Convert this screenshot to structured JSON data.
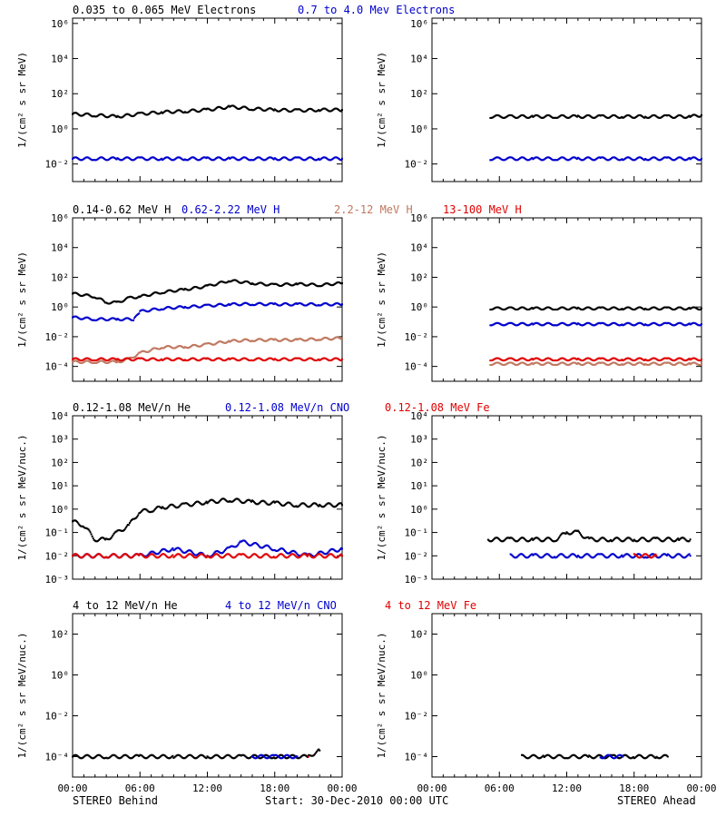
{
  "bottom": {
    "left_caption": "STEREO Behind",
    "center_caption": "Start: 30-Dec-2010 00:00 UTC",
    "right_caption": "STEREO Ahead",
    "xticks": [
      "00:00",
      "06:00",
      "12:00",
      "18:00",
      "00:00"
    ]
  },
  "colors": {
    "black": "#000000",
    "blue": "#0000cc",
    "tan": "#c07860",
    "red": "#e00000"
  },
  "chart_data": [
    {
      "type": "scatter",
      "title": "",
      "ylabel": "1/(cm² s sr MeV)",
      "ylog": true,
      "ylim": [
        0.001,
        2000000
      ],
      "yticks": [
        {
          "v": 0.01,
          "t": "10⁻²"
        },
        {
          "v": 1,
          "t": "10⁰"
        },
        {
          "v": 100,
          "t": "10²"
        },
        {
          "v": 10000,
          "t": "10⁴"
        },
        {
          "v": 1000000,
          "t": "10⁶"
        }
      ],
      "xlim": [
        0,
        24
      ],
      "legend": [
        "0.035 to 0.065 MeV Electrons",
        "0.7 to 4.0 Mev Electrons"
      ],
      "series": [
        {
          "name": "0.035 to 0.065 MeV Electrons",
          "color": "#000000",
          "x": [
            0,
            2,
            4,
            6,
            8,
            10,
            12,
            14,
            16,
            18,
            20,
            22,
            24
          ],
          "values": [
            7,
            6,
            5,
            7,
            9,
            10,
            12,
            18,
            14,
            12,
            11,
            12,
            12
          ]
        },
        {
          "name": "0.7 to 4.0 Mev Electrons",
          "color": "#0000cc",
          "x": [
            0,
            2,
            4,
            6,
            8,
            10,
            12,
            14,
            16,
            18,
            20,
            22,
            24
          ],
          "values": [
            0.02,
            0.02,
            0.02,
            0.02,
            0.02,
            0.02,
            0.02,
            0.02,
            0.02,
            0.02,
            0.02,
            0.02,
            0.02
          ]
        }
      ]
    },
    {
      "type": "scatter",
      "title": "",
      "ylabel": "1/(cm² s sr MeV)",
      "ylog": true,
      "ylim": [
        0.001,
        2000000
      ],
      "yticks": [
        {
          "v": 0.01,
          "t": "10⁻²"
        },
        {
          "v": 1,
          "t": "10⁰"
        },
        {
          "v": 100,
          "t": "10²"
        },
        {
          "v": 10000,
          "t": "10⁴"
        },
        {
          "v": 1000000,
          "t": "10⁶"
        }
      ],
      "xlim": [
        0,
        24
      ],
      "legend": [],
      "series": [
        {
          "name": "0.035 to 0.065 MeV Electrons",
          "color": "#000000",
          "x": [
            5.2,
            7,
            9,
            11,
            13,
            15,
            17,
            19,
            21,
            23,
            24
          ],
          "values": [
            5,
            5,
            5,
            5,
            5,
            5,
            5,
            5,
            5,
            5,
            6
          ]
        },
        {
          "name": "0.7 to 4.0 Mev Electrons",
          "color": "#0000cc",
          "x": [
            5.2,
            7,
            9,
            11,
            13,
            15,
            17,
            19,
            21,
            23,
            24
          ],
          "values": [
            0.02,
            0.02,
            0.02,
            0.02,
            0.02,
            0.02,
            0.02,
            0.02,
            0.02,
            0.02,
            0.02
          ]
        }
      ]
    },
    {
      "type": "scatter",
      "title": "",
      "ylabel": "1/(cm² s sr MeV)",
      "ylog": true,
      "ylim": [
        1e-05,
        1000000
      ],
      "yticks": [
        {
          "v": 0.0001,
          "t": "10⁻⁴"
        },
        {
          "v": 0.01,
          "t": "10⁻²"
        },
        {
          "v": 1,
          "t": "10⁰"
        },
        {
          "v": 100,
          "t": "10²"
        },
        {
          "v": 10000,
          "t": "10⁴"
        },
        {
          "v": 1000000,
          "t": "10⁶"
        }
      ],
      "xlim": [
        0,
        24
      ],
      "legend": [
        "0.14-0.62 MeV H",
        "0.62-2.22 MeV H",
        "2.2-12 MeV H",
        "13-100 MeV H"
      ],
      "series": [
        {
          "name": "0.14-0.62 MeV H",
          "color": "#000000",
          "x": [
            0,
            2,
            3,
            4,
            5,
            6,
            8,
            10,
            12,
            14,
            16,
            18,
            20,
            22,
            24
          ],
          "values": [
            8,
            5,
            2,
            2,
            4,
            5,
            10,
            15,
            25,
            60,
            40,
            30,
            35,
            30,
            40
          ]
        },
        {
          "name": "0.62-2.22 MeV H",
          "color": "#0000cc",
          "x": [
            0,
            2,
            4,
            5.5,
            6,
            8,
            10,
            12,
            14,
            16,
            18,
            20,
            22,
            24
          ],
          "values": [
            0.2,
            0.15,
            0.15,
            0.15,
            0.5,
            0.8,
            1,
            1.2,
            1.5,
            1.6,
            1.5,
            1.5,
            1.5,
            1.5
          ]
        },
        {
          "name": "2.2-12 MeV H",
          "color": "#c07860",
          "x": [
            0,
            2,
            4,
            5,
            6,
            8,
            10,
            12,
            14,
            16,
            18,
            20,
            22,
            24
          ],
          "values": [
            0.0002,
            0.0002,
            0.0002,
            0.0003,
            0.0008,
            0.002,
            0.002,
            0.003,
            0.005,
            0.006,
            0.006,
            0.006,
            0.007,
            0.008
          ]
        },
        {
          "name": "13-100 MeV H",
          "color": "#e00000",
          "x": [
            0,
            2,
            4,
            6,
            8,
            10,
            12,
            14,
            16,
            18,
            20,
            22,
            24
          ],
          "values": [
            0.0003,
            0.0003,
            0.0003,
            0.0003,
            0.0003,
            0.0003,
            0.0003,
            0.0003,
            0.0003,
            0.0003,
            0.0003,
            0.0003,
            0.0003
          ]
        }
      ]
    },
    {
      "type": "scatter",
      "title": "",
      "ylabel": "1/(cm² s sr MeV)",
      "ylog": true,
      "ylim": [
        1e-05,
        1000000
      ],
      "yticks": [
        {
          "v": 0.0001,
          "t": "10⁻⁴"
        },
        {
          "v": 0.01,
          "t": "10⁻²"
        },
        {
          "v": 1,
          "t": "10⁰"
        },
        {
          "v": 100,
          "t": "10²"
        },
        {
          "v": 10000,
          "t": "10⁴"
        },
        {
          "v": 1000000,
          "t": "10⁶"
        }
      ],
      "xlim": [
        0,
        24
      ],
      "legend": [],
      "series": [
        {
          "name": "0.14-0.62 MeV H",
          "color": "#000000",
          "x": [
            5.2,
            7,
            9,
            11,
            13,
            15,
            17,
            19,
            21,
            23,
            24
          ],
          "values": [
            0.8,
            0.8,
            0.8,
            0.8,
            0.8,
            0.8,
            0.8,
            0.8,
            0.8,
            0.8,
            0.8
          ]
        },
        {
          "name": "0.62-2.22 MeV H",
          "color": "#0000cc",
          "x": [
            5.2,
            7,
            9,
            11,
            13,
            15,
            17,
            19,
            21,
            23,
            24
          ],
          "values": [
            0.07,
            0.07,
            0.07,
            0.07,
            0.07,
            0.07,
            0.07,
            0.07,
            0.07,
            0.07,
            0.07
          ]
        },
        {
          "name": "2.2-12 MeV H",
          "color": "#c07860",
          "x": [
            5.2,
            7,
            9,
            11,
            13,
            15,
            17,
            19,
            21,
            23,
            24
          ],
          "values": [
            0.00015,
            0.00015,
            0.00015,
            0.00015,
            0.00015,
            0.00015,
            0.00015,
            0.00015,
            0.00015,
            0.00015,
            0.00015
          ]
        },
        {
          "name": "13-100 MeV H",
          "color": "#e00000",
          "x": [
            5.2,
            7,
            9,
            11,
            13,
            15,
            17,
            19,
            21,
            23,
            24
          ],
          "values": [
            0.0003,
            0.0003,
            0.0003,
            0.0003,
            0.0003,
            0.0003,
            0.0003,
            0.0003,
            0.0003,
            0.0003,
            0.0003
          ]
        }
      ]
    },
    {
      "type": "scatter",
      "title": "",
      "ylabel": "1/(cm² s sr MeV/nuc.)",
      "ylog": true,
      "ylim": [
        0.001,
        10000
      ],
      "yticks": [
        {
          "v": 0.001,
          "t": "10⁻³"
        },
        {
          "v": 0.01,
          "t": "10⁻²"
        },
        {
          "v": 0.1,
          "t": "10⁻¹"
        },
        {
          "v": 1,
          "t": "10⁰"
        },
        {
          "v": 10,
          "t": "10¹"
        },
        {
          "v": 100,
          "t": "10²"
        },
        {
          "v": 1000,
          "t": "10³"
        },
        {
          "v": 10000,
          "t": "10⁴"
        }
      ],
      "xlim": [
        0,
        24
      ],
      "legend": [
        "0.12-1.08 MeV/n He",
        "0.12-1.08 MeV/n CNO",
        "0.12-1.08 MeV Fe"
      ],
      "series": [
        {
          "name": "0.12-1.08 MeV/n He",
          "color": "#000000",
          "x": [
            0,
            1,
            2,
            3,
            4,
            5,
            6,
            7,
            8,
            10,
            12,
            14,
            16,
            18,
            20,
            22,
            24
          ],
          "values": [
            0.3,
            0.2,
            0.05,
            0.05,
            0.1,
            0.2,
            0.8,
            0.9,
            1.2,
            1.5,
            2,
            2.5,
            2,
            1.8,
            1.5,
            1.5,
            1.5
          ]
        },
        {
          "name": "0.12-1.08 MeV/n CNO",
          "color": "#0000cc",
          "x": [
            0,
            3,
            6,
            9,
            12,
            14,
            15,
            18,
            21,
            24
          ],
          "values": [
            0.01,
            0.01,
            0.01,
            0.02,
            0.01,
            0.02,
            0.04,
            0.02,
            0.01,
            0.02
          ]
        },
        {
          "name": "0.12-1.08 MeV Fe",
          "color": "#e00000",
          "x": [
            0,
            3,
            6,
            9,
            12,
            15,
            18,
            21,
            24
          ],
          "values": [
            0.01,
            0.01,
            0.01,
            0.01,
            0.01,
            0.01,
            0.01,
            0.01,
            0.01
          ]
        }
      ]
    },
    {
      "type": "scatter",
      "title": "",
      "ylabel": "1/(cm² s sr MeV/nuc.)",
      "ylog": true,
      "ylim": [
        0.001,
        10000
      ],
      "yticks": [
        {
          "v": 0.001,
          "t": "10⁻³"
        },
        {
          "v": 0.01,
          "t": "10⁻²"
        },
        {
          "v": 0.1,
          "t": "10⁻¹"
        },
        {
          "v": 1,
          "t": "10⁰"
        },
        {
          "v": 10,
          "t": "10¹"
        },
        {
          "v": 100,
          "t": "10²"
        },
        {
          "v": 1000,
          "t": "10³"
        },
        {
          "v": 10000,
          "t": "10⁴"
        }
      ],
      "xlim": [
        0,
        24
      ],
      "legend": [],
      "series": [
        {
          "name": "0.12-1.08 MeV/n He",
          "color": "#000000",
          "x": [
            5,
            7,
            9,
            11,
            12,
            13,
            14,
            16,
            18,
            20,
            22,
            23
          ],
          "values": [
            0.05,
            0.05,
            0.05,
            0.05,
            0.1,
            0.1,
            0.05,
            0.05,
            0.05,
            0.05,
            0.05,
            0.05
          ]
        },
        {
          "name": "0.12-1.08 MeV/n CNO",
          "color": "#0000cc",
          "x": [
            7,
            9,
            11,
            13,
            15,
            17,
            19,
            21,
            23
          ],
          "values": [
            0.01,
            0.01,
            0.01,
            0.01,
            0.01,
            0.01,
            0.01,
            0.01,
            0.01
          ]
        },
        {
          "name": "0.12-1.08 MeV Fe",
          "color": "#e00000",
          "x": [
            18,
            20
          ],
          "values": [
            0.01,
            0.01
          ]
        }
      ]
    },
    {
      "type": "scatter",
      "title": "",
      "ylabel": "1/(cm² s sr MeV/nuc.)",
      "ylog": true,
      "ylim": [
        1e-05,
        1000
      ],
      "yticks": [
        {
          "v": 0.0001,
          "t": "10⁻⁴"
        },
        {
          "v": 0.01,
          "t": "10⁻²"
        },
        {
          "v": 1,
          "t": "10⁰"
        },
        {
          "v": 100,
          "t": "10²"
        }
      ],
      "xlim": [
        0,
        24
      ],
      "legend": [
        "4 to 12 MeV/n He",
        "4 to 12 MeV/n CNO",
        "4 to 12 MeV Fe"
      ],
      "series": [
        {
          "name": "4 to 12 MeV/n He",
          "color": "#000000",
          "x": [
            0,
            3,
            6,
            9,
            12,
            15,
            18,
            21,
            22
          ],
          "values": [
            0.0001,
            0.0001,
            0.0001,
            0.0001,
            0.0001,
            0.0001,
            0.0001,
            0.0001,
            0.0002
          ]
        },
        {
          "name": "4 to 12 MeV/n CNO",
          "color": "#0000cc",
          "x": [
            16,
            18,
            20
          ],
          "values": [
            0.0001,
            0.0001,
            0.0001
          ]
        },
        {
          "name": "4 to 12 MeV Fe",
          "color": "#e00000",
          "x": [
            21
          ],
          "values": [
            0.0001
          ]
        }
      ]
    },
    {
      "type": "scatter",
      "title": "",
      "ylabel": "1/(cm² s sr MeV/nuc.)",
      "ylog": true,
      "ylim": [
        1e-05,
        1000
      ],
      "yticks": [
        {
          "v": 0.0001,
          "t": "10⁻⁴"
        },
        {
          "v": 0.01,
          "t": "10⁻²"
        },
        {
          "v": 1,
          "t": "10⁰"
        },
        {
          "v": 100,
          "t": "10²"
        }
      ],
      "xlim": [
        0,
        24
      ],
      "legend": [],
      "series": [
        {
          "name": "4 to 12 MeV/n He",
          "color": "#000000",
          "x": [
            8,
            10,
            12,
            14,
            16,
            18,
            20,
            21
          ],
          "values": [
            0.0001,
            0.0001,
            0.0001,
            0.0001,
            0.0001,
            0.0001,
            0.0001,
            0.0001
          ]
        },
        {
          "name": "4 to 12 MeV/n CNO",
          "color": "#0000cc",
          "x": [
            15,
            17
          ],
          "values": [
            0.0001,
            0.0001
          ]
        }
      ]
    }
  ]
}
